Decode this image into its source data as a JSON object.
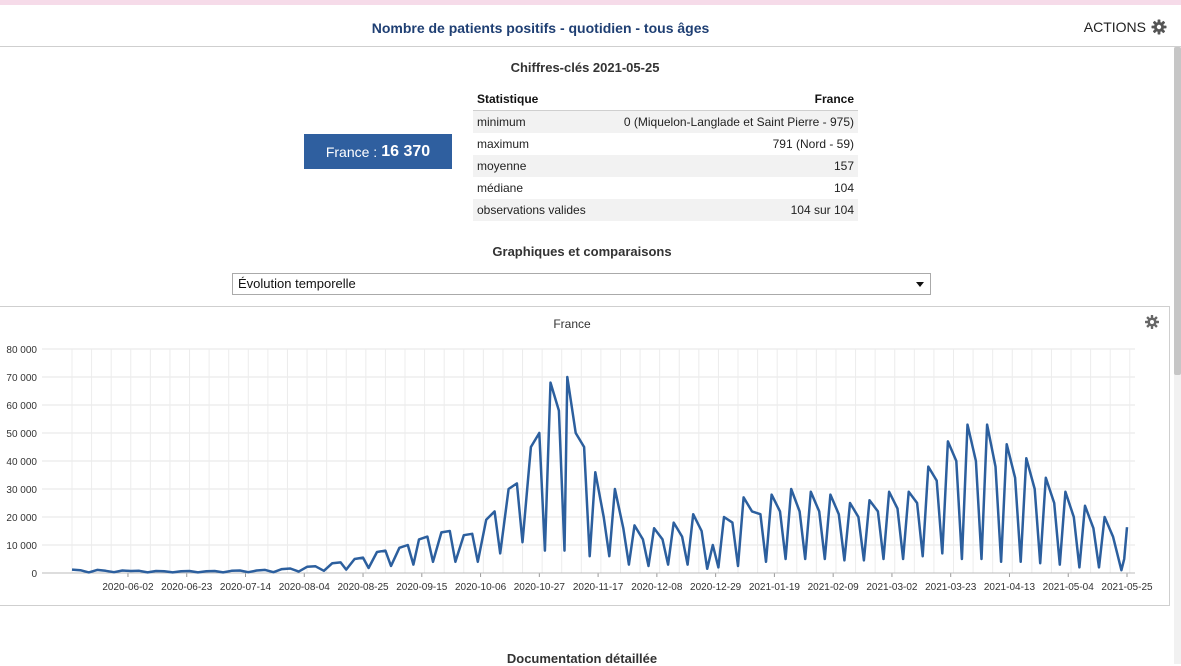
{
  "header": {
    "title": "Nombre de patients positifs - quotidien - tous âges",
    "actions_label": "ACTIONS"
  },
  "keyfigures": {
    "title": "Chiffres-clés 2021-05-25",
    "badge_label": "France :",
    "badge_value": "16 370",
    "table": {
      "headers": [
        "Statistique",
        "France"
      ],
      "rows": [
        [
          "minimum",
          "0 (Miquelon-Langlade et Saint Pierre - 975)"
        ],
        [
          "maximum",
          "791 (Nord - 59)"
        ],
        [
          "moyenne",
          "157"
        ],
        [
          "médiane",
          "104"
        ],
        [
          "observations valides",
          "104 sur 104"
        ]
      ]
    }
  },
  "graphs": {
    "title": "Graphiques et comparaisons",
    "select_value": "Évolution temporelle"
  },
  "documentation": {
    "title": "Documentation détaillée"
  },
  "colors": {
    "line": "#2c5f9e",
    "badge": "#2f5f9f",
    "header_title": "#1f3f73"
  },
  "chart_data": {
    "type": "line",
    "title": "France",
    "x_start": "2020-05-13",
    "x_end": "2021-05-25",
    "xtick_labels": [
      "2020-06-02",
      "2020-06-23",
      "2020-07-14",
      "2020-08-04",
      "2020-08-25",
      "2020-09-15",
      "2020-10-06",
      "2020-10-27",
      "2020-11-17",
      "2020-12-08",
      "2020-12-29",
      "2021-01-19",
      "2021-02-09",
      "2021-03-02",
      "2021-03-23",
      "2021-04-13",
      "2021-05-04",
      "2021-05-25"
    ],
    "ylim": [
      0,
      80000
    ],
    "ytick_labels": [
      "0",
      "10 000",
      "20 000",
      "30 000",
      "40 000",
      "50 000",
      "60 000",
      "70 000",
      "80 000"
    ],
    "grid": true,
    "series": [
      {
        "values": [
          [
            "2020-05-13",
            1200
          ],
          [
            "2020-05-16",
            1000
          ],
          [
            "2020-05-19",
            200
          ],
          [
            "2020-05-22",
            1100
          ],
          [
            "2020-05-25",
            800
          ],
          [
            "2020-05-28",
            300
          ],
          [
            "2020-05-31",
            900
          ],
          [
            "2020-06-03",
            700
          ],
          [
            "2020-06-06",
            800
          ],
          [
            "2020-06-09",
            200
          ],
          [
            "2020-06-12",
            700
          ],
          [
            "2020-06-15",
            600
          ],
          [
            "2020-06-18",
            200
          ],
          [
            "2020-06-21",
            600
          ],
          [
            "2020-06-24",
            700
          ],
          [
            "2020-06-27",
            200
          ],
          [
            "2020-06-30",
            600
          ],
          [
            "2020-07-03",
            700
          ],
          [
            "2020-07-06",
            200
          ],
          [
            "2020-07-09",
            800
          ],
          [
            "2020-07-12",
            900
          ],
          [
            "2020-07-15",
            300
          ],
          [
            "2020-07-18",
            900
          ],
          [
            "2020-07-21",
            1100
          ],
          [
            "2020-07-24",
            300
          ],
          [
            "2020-07-27",
            1400
          ],
          [
            "2020-07-30",
            1600
          ],
          [
            "2020-08-02",
            500
          ],
          [
            "2020-08-05",
            2200
          ],
          [
            "2020-08-08",
            2400
          ],
          [
            "2020-08-11",
            800
          ],
          [
            "2020-08-14",
            3500
          ],
          [
            "2020-08-17",
            3800
          ],
          [
            "2020-08-19",
            1200
          ],
          [
            "2020-08-22",
            5000
          ],
          [
            "2020-08-25",
            5500
          ],
          [
            "2020-08-27",
            1800
          ],
          [
            "2020-08-30",
            7500
          ],
          [
            "2020-09-02",
            8000
          ],
          [
            "2020-09-04",
            2500
          ],
          [
            "2020-09-07",
            9000
          ],
          [
            "2020-09-10",
            10000
          ],
          [
            "2020-09-12",
            3000
          ],
          [
            "2020-09-14",
            12000
          ],
          [
            "2020-09-17",
            13000
          ],
          [
            "2020-09-19",
            4000
          ],
          [
            "2020-09-22",
            14500
          ],
          [
            "2020-09-25",
            15000
          ],
          [
            "2020-09-27",
            4000
          ],
          [
            "2020-09-30",
            13500
          ],
          [
            "2020-10-03",
            14000
          ],
          [
            "2020-10-05",
            4000
          ],
          [
            "2020-10-08",
            19000
          ],
          [
            "2020-10-11",
            22000
          ],
          [
            "2020-10-13",
            7000
          ],
          [
            "2020-10-16",
            30000
          ],
          [
            "2020-10-19",
            32000
          ],
          [
            "2020-10-21",
            11000
          ],
          [
            "2020-10-24",
            45000
          ],
          [
            "2020-10-27",
            50000
          ],
          [
            "2020-10-29",
            8000
          ],
          [
            "2020-10-31",
            68000
          ],
          [
            "2020-11-03",
            58000
          ],
          [
            "2020-11-05",
            8000
          ],
          [
            "2020-11-06",
            70000
          ],
          [
            "2020-11-09",
            50000
          ],
          [
            "2020-11-12",
            45000
          ],
          [
            "2020-11-14",
            6000
          ],
          [
            "2020-11-16",
            36000
          ],
          [
            "2020-11-19",
            20000
          ],
          [
            "2020-11-21",
            6000
          ],
          [
            "2020-11-23",
            30000
          ],
          [
            "2020-11-26",
            16000
          ],
          [
            "2020-11-28",
            3000
          ],
          [
            "2020-11-30",
            17000
          ],
          [
            "2020-12-03",
            12000
          ],
          [
            "2020-12-05",
            2500
          ],
          [
            "2020-12-07",
            16000
          ],
          [
            "2020-12-10",
            12000
          ],
          [
            "2020-12-12",
            3000
          ],
          [
            "2020-12-14",
            18000
          ],
          [
            "2020-12-17",
            13000
          ],
          [
            "2020-12-19",
            3000
          ],
          [
            "2020-12-21",
            21000
          ],
          [
            "2020-12-24",
            15000
          ],
          [
            "2020-12-26",
            1500
          ],
          [
            "2020-12-28",
            10000
          ],
          [
            "2020-12-30",
            2000
          ],
          [
            "2021-01-01",
            20000
          ],
          [
            "2021-01-04",
            18000
          ],
          [
            "2021-01-06",
            2500
          ],
          [
            "2021-01-08",
            27000
          ],
          [
            "2021-01-11",
            22000
          ],
          [
            "2021-01-14",
            21000
          ],
          [
            "2021-01-16",
            4000
          ],
          [
            "2021-01-18",
            28000
          ],
          [
            "2021-01-21",
            22000
          ],
          [
            "2021-01-23",
            5000
          ],
          [
            "2021-01-25",
            30000
          ],
          [
            "2021-01-28",
            22000
          ],
          [
            "2021-01-30",
            5000
          ],
          [
            "2021-02-01",
            29000
          ],
          [
            "2021-02-04",
            22000
          ],
          [
            "2021-02-06",
            5000
          ],
          [
            "2021-02-08",
            28000
          ],
          [
            "2021-02-11",
            21000
          ],
          [
            "2021-02-13",
            4500
          ],
          [
            "2021-02-15",
            25000
          ],
          [
            "2021-02-18",
            20000
          ],
          [
            "2021-02-20",
            4500
          ],
          [
            "2021-02-22",
            26000
          ],
          [
            "2021-02-25",
            22000
          ],
          [
            "2021-02-27",
            5000
          ],
          [
            "2021-03-01",
            29000
          ],
          [
            "2021-03-04",
            23000
          ],
          [
            "2021-03-06",
            5000
          ],
          [
            "2021-03-08",
            29000
          ],
          [
            "2021-03-11",
            25000
          ],
          [
            "2021-03-13",
            6000
          ],
          [
            "2021-03-15",
            38000
          ],
          [
            "2021-03-18",
            33000
          ],
          [
            "2021-03-20",
            7000
          ],
          [
            "2021-03-22",
            47000
          ],
          [
            "2021-03-25",
            40000
          ],
          [
            "2021-03-27",
            5000
          ],
          [
            "2021-03-29",
            53000
          ],
          [
            "2021-04-01",
            40000
          ],
          [
            "2021-04-03",
            5000
          ],
          [
            "2021-04-05",
            53000
          ],
          [
            "2021-04-08",
            38000
          ],
          [
            "2021-04-10",
            4000
          ],
          [
            "2021-04-12",
            46000
          ],
          [
            "2021-04-15",
            34000
          ],
          [
            "2021-04-17",
            4000
          ],
          [
            "2021-04-19",
            41000
          ],
          [
            "2021-04-22",
            30000
          ],
          [
            "2021-04-24",
            3500
          ],
          [
            "2021-04-26",
            34000
          ],
          [
            "2021-04-29",
            25000
          ],
          [
            "2021-05-01",
            3000
          ],
          [
            "2021-05-03",
            29000
          ],
          [
            "2021-05-06",
            20000
          ],
          [
            "2021-05-08",
            2000
          ],
          [
            "2021-05-10",
            24000
          ],
          [
            "2021-05-13",
            16000
          ],
          [
            "2021-05-15",
            2000
          ],
          [
            "2021-05-17",
            20000
          ],
          [
            "2021-05-20",
            13000
          ],
          [
            "2021-05-23",
            1000
          ],
          [
            "2021-05-24",
            5000
          ],
          [
            "2021-05-25",
            16370
          ]
        ]
      }
    ]
  }
}
